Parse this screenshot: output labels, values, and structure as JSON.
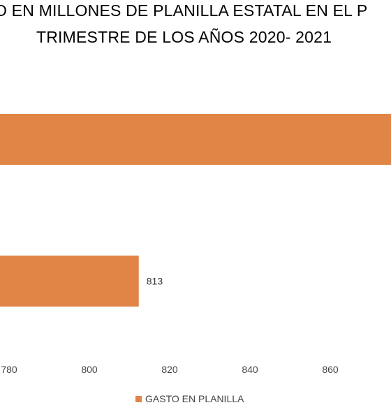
{
  "chart_data": {
    "type": "bar",
    "orientation": "horizontal",
    "title_lines": [
      "O EN MILLONES DE PLANILLA ESTATAL EN EL P",
      "TRIMESTRE DE LOS AÑOS 2020- 2021"
    ],
    "x_ticks": [
      "780",
      "800",
      "820",
      "840",
      "860"
    ],
    "series": [
      {
        "name": "GASTO EN PLANILLA",
        "color": "#e08545",
        "bars": [
          {
            "value": 813,
            "label": "813"
          },
          {
            "value": 890,
            "label": ""
          }
        ]
      }
    ],
    "grid": false,
    "legend_position": "bottom"
  }
}
